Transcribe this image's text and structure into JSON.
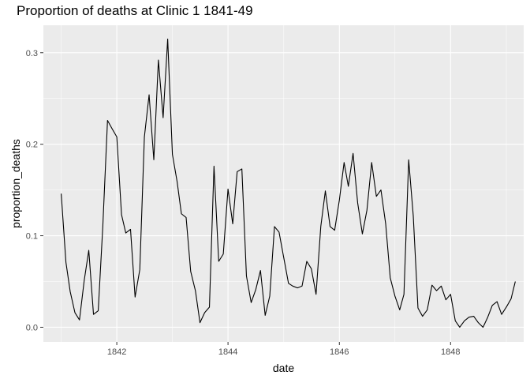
{
  "chart_data": {
    "type": "line",
    "title": "Proportion of deaths at Clinic 1 1841-49",
    "xlabel": "date",
    "ylabel": "proportion_deaths",
    "x_ticks": [
      "1842",
      "1844",
      "1846",
      "1848"
    ],
    "y_ticks": [
      "0.0",
      "0.1",
      "0.2",
      "0.3"
    ],
    "xlim": [
      "1840-09-06",
      "1849-04-25"
    ],
    "ylim": [
      -0.016,
      0.33
    ],
    "grid": true,
    "legend": "none",
    "colors": {
      "panel": "#ebebeb",
      "grid": "#ffffff",
      "line": "#000000",
      "tick_text": "#4d4d4d"
    },
    "series": [
      {
        "x": [
          "1841-01-01",
          "1841-02-01",
          "1841-03-01",
          "1841-04-01",
          "1841-05-01",
          "1841-06-01",
          "1841-07-01",
          "1841-08-01",
          "1841-09-01",
          "1841-10-01",
          "1841-11-01",
          "1841-12-01",
          "1842-01-01",
          "1842-02-01",
          "1842-03-01",
          "1842-04-01",
          "1842-05-01",
          "1842-06-01",
          "1842-07-01",
          "1842-08-01",
          "1842-09-01",
          "1842-10-01",
          "1842-11-01",
          "1842-12-01",
          "1843-01-01",
          "1843-02-01",
          "1843-03-01",
          "1843-04-01",
          "1843-05-01",
          "1843-06-01",
          "1843-07-01",
          "1843-08-01",
          "1843-09-01",
          "1843-10-01",
          "1843-11-01",
          "1843-12-01",
          "1844-01-01",
          "1844-02-01",
          "1844-03-01",
          "1844-04-01",
          "1844-05-01",
          "1844-06-01",
          "1844-07-01",
          "1844-08-01",
          "1844-09-01",
          "1844-10-01",
          "1844-11-01",
          "1844-12-01",
          "1845-01-01",
          "1845-02-01",
          "1845-03-01",
          "1845-04-01",
          "1845-05-01",
          "1845-06-01",
          "1845-07-01",
          "1845-08-01",
          "1845-09-01",
          "1845-10-01",
          "1845-11-01",
          "1845-12-01",
          "1846-01-01",
          "1846-02-01",
          "1846-03-01",
          "1846-04-01",
          "1846-05-01",
          "1846-06-01",
          "1846-07-01",
          "1846-08-01",
          "1846-09-01",
          "1846-10-01",
          "1846-11-01",
          "1846-12-01",
          "1847-01-01",
          "1847-02-01",
          "1847-03-01",
          "1847-04-01",
          "1847-05-01",
          "1847-06-01",
          "1847-07-01",
          "1847-08-01",
          "1847-09-01",
          "1847-10-01",
          "1847-11-01",
          "1847-12-01",
          "1848-01-01",
          "1848-02-01",
          "1848-03-01",
          "1848-04-01",
          "1848-05-01",
          "1848-06-01",
          "1848-07-01",
          "1848-08-01",
          "1848-09-01",
          "1848-10-01",
          "1848-11-01",
          "1848-12-01",
          "1849-01-01",
          "1849-02-01",
          "1849-03-01"
        ],
        "values": [
          0.146,
          0.071,
          0.039,
          0.016,
          0.008,
          0.051,
          0.084,
          0.014,
          0.018,
          0.11,
          0.226,
          0.217,
          0.208,
          0.123,
          0.103,
          0.107,
          0.033,
          0.063,
          0.208,
          0.254,
          0.183,
          0.292,
          0.229,
          0.315,
          0.189,
          0.159,
          0.124,
          0.12,
          0.061,
          0.04,
          0.005,
          0.016,
          0.022,
          0.176,
          0.072,
          0.08,
          0.151,
          0.113,
          0.17,
          0.173,
          0.056,
          0.027,
          0.041,
          0.062,
          0.013,
          0.034,
          0.11,
          0.104,
          0.076,
          0.048,
          0.045,
          0.043,
          0.045,
          0.072,
          0.064,
          0.036,
          0.11,
          0.149,
          0.11,
          0.106,
          0.139,
          0.18,
          0.154,
          0.19,
          0.136,
          0.102,
          0.128,
          0.18,
          0.143,
          0.15,
          0.113,
          0.054,
          0.034,
          0.019,
          0.036,
          0.183,
          0.122,
          0.021,
          0.012,
          0.019,
          0.046,
          0.04,
          0.045,
          0.03,
          0.036,
          0.007,
          0.0,
          0.007,
          0.011,
          0.012,
          0.005,
          0.0,
          0.011,
          0.024,
          0.028,
          0.014,
          0.022,
          0.031,
          0.05
        ]
      }
    ]
  }
}
